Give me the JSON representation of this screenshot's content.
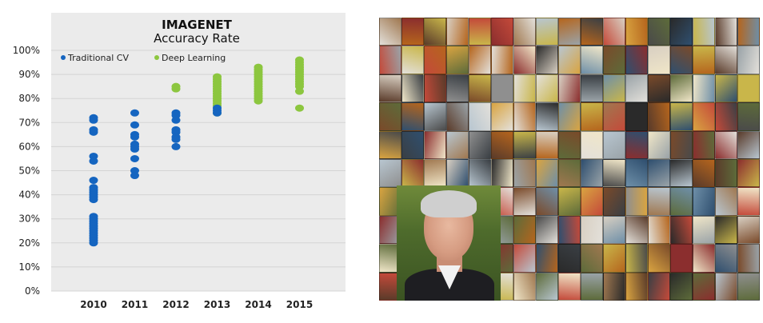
{
  "chart_data": {
    "type": "scatter",
    "title": "IMAGENET",
    "subtitle": "Accuracy Rate",
    "categories": [
      "2010",
      "2011",
      "2012",
      "2013",
      "2014",
      "2015"
    ],
    "yticks": [
      "0%",
      "10%",
      "20%",
      "30%",
      "40%",
      "50%",
      "60%",
      "70%",
      "80%",
      "90%",
      "100%"
    ],
    "ylim": [
      0,
      100
    ],
    "grid": true,
    "legend_position": "top-left",
    "series": [
      {
        "name": "Traditional CV",
        "color": "#1565c0",
        "points": [
          {
            "x": "2010",
            "y": 72
          },
          {
            "x": "2010",
            "y": 71
          },
          {
            "x": "2010",
            "y": 67
          },
          {
            "x": "2010",
            "y": 66
          },
          {
            "x": "2010",
            "y": 56
          },
          {
            "x": "2010",
            "y": 54
          },
          {
            "x": "2010",
            "y": 46
          },
          {
            "x": "2010",
            "y": 43
          },
          {
            "x": "2010",
            "y": 42
          },
          {
            "x": "2010",
            "y": 41
          },
          {
            "x": "2010",
            "y": 40
          },
          {
            "x": "2010",
            "y": 39
          },
          {
            "x": "2010",
            "y": 38
          },
          {
            "x": "2010",
            "y": 31
          },
          {
            "x": "2010",
            "y": 30
          },
          {
            "x": "2010",
            "y": 29
          },
          {
            "x": "2010",
            "y": 28
          },
          {
            "x": "2010",
            "y": 27
          },
          {
            "x": "2010",
            "y": 26
          },
          {
            "x": "2010",
            "y": 25
          },
          {
            "x": "2010",
            "y": 24
          },
          {
            "x": "2010",
            "y": 23
          },
          {
            "x": "2010",
            "y": 22
          },
          {
            "x": "2010",
            "y": 21
          },
          {
            "x": "2010",
            "y": 20
          },
          {
            "x": "2011",
            "y": 74
          },
          {
            "x": "2011",
            "y": 69
          },
          {
            "x": "2011",
            "y": 65
          },
          {
            "x": "2011",
            "y": 64
          },
          {
            "x": "2011",
            "y": 61
          },
          {
            "x": "2011",
            "y": 60
          },
          {
            "x": "2011",
            "y": 59
          },
          {
            "x": "2011",
            "y": 55
          },
          {
            "x": "2011",
            "y": 50
          },
          {
            "x": "2011",
            "y": 48
          },
          {
            "x": "2012",
            "y": 74
          },
          {
            "x": "2012",
            "y": 73
          },
          {
            "x": "2012",
            "y": 71
          },
          {
            "x": "2012",
            "y": 67
          },
          {
            "x": "2012",
            "y": 66
          },
          {
            "x": "2012",
            "y": 64
          },
          {
            "x": "2012",
            "y": 63
          },
          {
            "x": "2012",
            "y": 60
          },
          {
            "x": "2013",
            "y": 76
          },
          {
            "x": "2013",
            "y": 75
          },
          {
            "x": "2013",
            "y": 74
          }
        ]
      },
      {
        "name": "Deep Learning",
        "color": "#8cc63f",
        "points": [
          {
            "x": "2012",
            "y": 85
          },
          {
            "x": "2012",
            "y": 84
          },
          {
            "x": "2013",
            "y": 89
          },
          {
            "x": "2013",
            "y": 88
          },
          {
            "x": "2013",
            "y": 87
          },
          {
            "x": "2013",
            "y": 86
          },
          {
            "x": "2013",
            "y": 85
          },
          {
            "x": "2013",
            "y": 84
          },
          {
            "x": "2013",
            "y": 83
          },
          {
            "x": "2013",
            "y": 82
          },
          {
            "x": "2013",
            "y": 81
          },
          {
            "x": "2013",
            "y": 80
          },
          {
            "x": "2013",
            "y": 79
          },
          {
            "x": "2013",
            "y": 78
          },
          {
            "x": "2013",
            "y": 77
          },
          {
            "x": "2013",
            "y": 74
          },
          {
            "x": "2014",
            "y": 93
          },
          {
            "x": "2014",
            "y": 92
          },
          {
            "x": "2014",
            "y": 91
          },
          {
            "x": "2014",
            "y": 90
          },
          {
            "x": "2014",
            "y": 89
          },
          {
            "x": "2014",
            "y": 88
          },
          {
            "x": "2014",
            "y": 87
          },
          {
            "x": "2014",
            "y": 86
          },
          {
            "x": "2014",
            "y": 85
          },
          {
            "x": "2014",
            "y": 84
          },
          {
            "x": "2014",
            "y": 83
          },
          {
            "x": "2014",
            "y": 82
          },
          {
            "x": "2014",
            "y": 81
          },
          {
            "x": "2014",
            "y": 80
          },
          {
            "x": "2014",
            "y": 79
          },
          {
            "x": "2015",
            "y": 96
          },
          {
            "x": "2015",
            "y": 95
          },
          {
            "x": "2015",
            "y": 94
          },
          {
            "x": "2015",
            "y": 93
          },
          {
            "x": "2015",
            "y": 92
          },
          {
            "x": "2015",
            "y": 91
          },
          {
            "x": "2015",
            "y": 90
          },
          {
            "x": "2015",
            "y": 89
          },
          {
            "x": "2015",
            "y": 88
          },
          {
            "x": "2015",
            "y": 87
          },
          {
            "x": "2015",
            "y": 86
          },
          {
            "x": "2015",
            "y": 85
          },
          {
            "x": "2015",
            "y": 83
          },
          {
            "x": "2015",
            "y": 76
          }
        ]
      }
    ]
  },
  "mosaic": {
    "palette": [
      "#7a4a2a",
      "#c9b64a",
      "#9aa3a8",
      "#3a3f44",
      "#8b2e2e",
      "#d8cfc2",
      "#5d6b3a",
      "#2f4f6f",
      "#b5651d",
      "#e3e0da",
      "#4a4a4a",
      "#a07850",
      "#6e8fa8",
      "#c44a3a",
      "#f0e6c8",
      "#2a2a2a",
      "#8f8f8f",
      "#5a3b2a",
      "#b8c6d0",
      "#d9a441"
    ]
  }
}
